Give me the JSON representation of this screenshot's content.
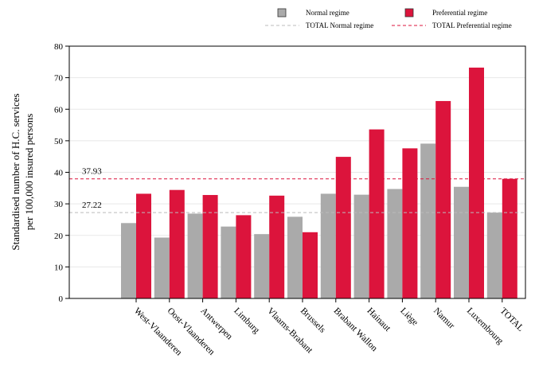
{
  "chart_data": {
    "type": "bar",
    "title": "",
    "xlabel": "",
    "ylabel_lines": [
      "Standardised number of H.C. services",
      "per 100,000 insured persons"
    ],
    "ylim": [
      0,
      80
    ],
    "yticks": [
      0,
      10,
      20,
      30,
      40,
      50,
      60,
      70,
      80
    ],
    "grid": true,
    "legend_position": "top-right",
    "categories": [
      "West-Vlaanderen",
      "Oost-Vlaanderen",
      "Antwerpen",
      "Limburg",
      "Vlaams-Brabant",
      "Brussels",
      "Brabant Wallon",
      "Hainaut",
      "Liège",
      "Namur",
      "Luxembourg",
      "TOTAL"
    ],
    "series": [
      {
        "name": "Normal regime",
        "color": "#aaaaaa",
        "values": [
          23.9,
          19.3,
          26.9,
          22.8,
          20.4,
          25.9,
          33.2,
          32.9,
          34.7,
          49.1,
          35.4,
          27.22
        ]
      },
      {
        "name": "Preferential regime",
        "color": "#dc143c",
        "values": [
          33.2,
          34.4,
          32.8,
          26.4,
          32.6,
          21.0,
          44.9,
          53.6,
          47.6,
          62.6,
          73.2,
          37.93
        ]
      }
    ],
    "reference_lines": [
      {
        "name": "TOTAL Normal regime",
        "value": 27.22,
        "label": "27.22",
        "color": "#bbbbbb"
      },
      {
        "name": "TOTAL Preferential regime",
        "value": 37.93,
        "label": "37.93",
        "color": "#dc143c"
      }
    ]
  }
}
